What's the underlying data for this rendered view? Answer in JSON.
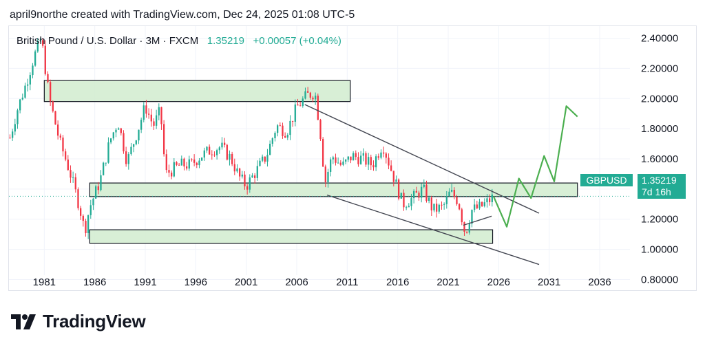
{
  "header": {
    "created_by": "april9northe created with TradingView.com, Dec 24, 2025 01:08 UTC-5"
  },
  "symbol": {
    "name": "British Pound / U.S. Dollar · 3M · FXCM",
    "price": "1.35219",
    "change": "+0.00057 (+0.04%)"
  },
  "price_tag": {
    "pair": "GBPUSD",
    "price": "1.35219",
    "countdown": "7d 16h"
  },
  "logo": {
    "text": "TradingView"
  },
  "colors": {
    "up": "#22ab94",
    "down": "#f23645",
    "zone_fill": "#d4edd2",
    "forecast": "#4caf50",
    "trendline": "#434651"
  },
  "chart_data": {
    "type": "candlestick",
    "title": "British Pound / U.S. Dollar · 3M · FXCM",
    "timeframe": "3M",
    "x_ticks": [
      "1981",
      "1986",
      "1991",
      "1996",
      "2001",
      "2006",
      "2011",
      "2016",
      "2021",
      "2026",
      "2031",
      "2036"
    ],
    "y_ticks": [
      "2.40000",
      "2.20000",
      "2.00000",
      "1.80000",
      "1.60000",
      "1.40000",
      "1.20000",
      "1.00000",
      "0.80000"
    ],
    "xlim": [
      1977.5,
      2039.0
    ],
    "ylim": [
      0.72,
      2.48
    ],
    "current_price": 1.35219,
    "close_path": [
      [
        1977.6,
        1.74
      ],
      [
        1978.3,
        1.92
      ],
      [
        1979.2,
        2.1
      ],
      [
        1980.0,
        2.28
      ],
      [
        1980.7,
        2.4
      ],
      [
        1981.5,
        2.0
      ],
      [
        1982.5,
        1.72
      ],
      [
        1983.5,
        1.52
      ],
      [
        1984.5,
        1.28
      ],
      [
        1985.0,
        1.12
      ],
      [
        1985.5,
        1.28
      ],
      [
        1986.5,
        1.45
      ],
      [
        1987.5,
        1.72
      ],
      [
        1988.3,
        1.85
      ],
      [
        1989.2,
        1.58
      ],
      [
        1990.3,
        1.8
      ],
      [
        1991.0,
        1.95
      ],
      [
        1991.8,
        1.82
      ],
      [
        1992.5,
        1.92
      ],
      [
        1993.0,
        1.5
      ],
      [
        1994.5,
        1.56
      ],
      [
        1995.5,
        1.56
      ],
      [
        1996.5,
        1.62
      ],
      [
        1997.5,
        1.66
      ],
      [
        1998.5,
        1.68
      ],
      [
        1999.5,
        1.6
      ],
      [
        2000.3,
        1.48
      ],
      [
        2001.0,
        1.42
      ],
      [
        2002.0,
        1.52
      ],
      [
        2003.0,
        1.62
      ],
      [
        2004.0,
        1.82
      ],
      [
        2005.0,
        1.78
      ],
      [
        2006.0,
        1.94
      ],
      [
        2007.0,
        2.02
      ],
      [
        2007.8,
        2.04
      ],
      [
        2008.3,
        1.8
      ],
      [
        2008.8,
        1.44
      ],
      [
        2009.5,
        1.62
      ],
      [
        2010.5,
        1.55
      ],
      [
        2011.5,
        1.62
      ],
      [
        2012.5,
        1.6
      ],
      [
        2013.5,
        1.56
      ],
      [
        2014.5,
        1.7
      ],
      [
        2015.5,
        1.5
      ],
      [
        2016.5,
        1.3
      ],
      [
        2017.5,
        1.34
      ],
      [
        2018.5,
        1.4
      ],
      [
        2019.5,
        1.26
      ],
      [
        2020.5,
        1.28
      ],
      [
        2021.2,
        1.38
      ],
      [
        2022.0,
        1.32
      ],
      [
        2022.7,
        1.1
      ],
      [
        2023.3,
        1.26
      ],
      [
        2024.2,
        1.28
      ],
      [
        2025.0,
        1.32
      ],
      [
        2025.5,
        1.35
      ]
    ],
    "zones": [
      {
        "x0": 1981.0,
        "x1": 2011.3,
        "y0": 1.98,
        "y1": 2.12
      },
      {
        "x0": 1985.5,
        "x1": 2033.8,
        "y0": 1.35,
        "y1": 1.44
      },
      {
        "x0": 1985.5,
        "x1": 2025.4,
        "y0": 1.04,
        "y1": 1.13
      }
    ],
    "trendlines": [
      {
        "from": [
          2006.8,
          1.96
        ],
        "to": [
          2030.0,
          1.24
        ]
      },
      {
        "from": [
          2009.0,
          1.36
        ],
        "to": [
          2030.0,
          0.9
        ]
      },
      {
        "from": [
          2022.5,
          1.16
        ],
        "to": [
          2025.3,
          1.22
        ]
      }
    ],
    "forecast_path": [
      [
        2025.5,
        1.35
      ],
      [
        2026.8,
        1.15
      ],
      [
        2028.0,
        1.47
      ],
      [
        2029.2,
        1.34
      ],
      [
        2030.5,
        1.62
      ],
      [
        2031.5,
        1.45
      ],
      [
        2032.7,
        1.95
      ],
      [
        2033.8,
        1.88
      ]
    ]
  }
}
